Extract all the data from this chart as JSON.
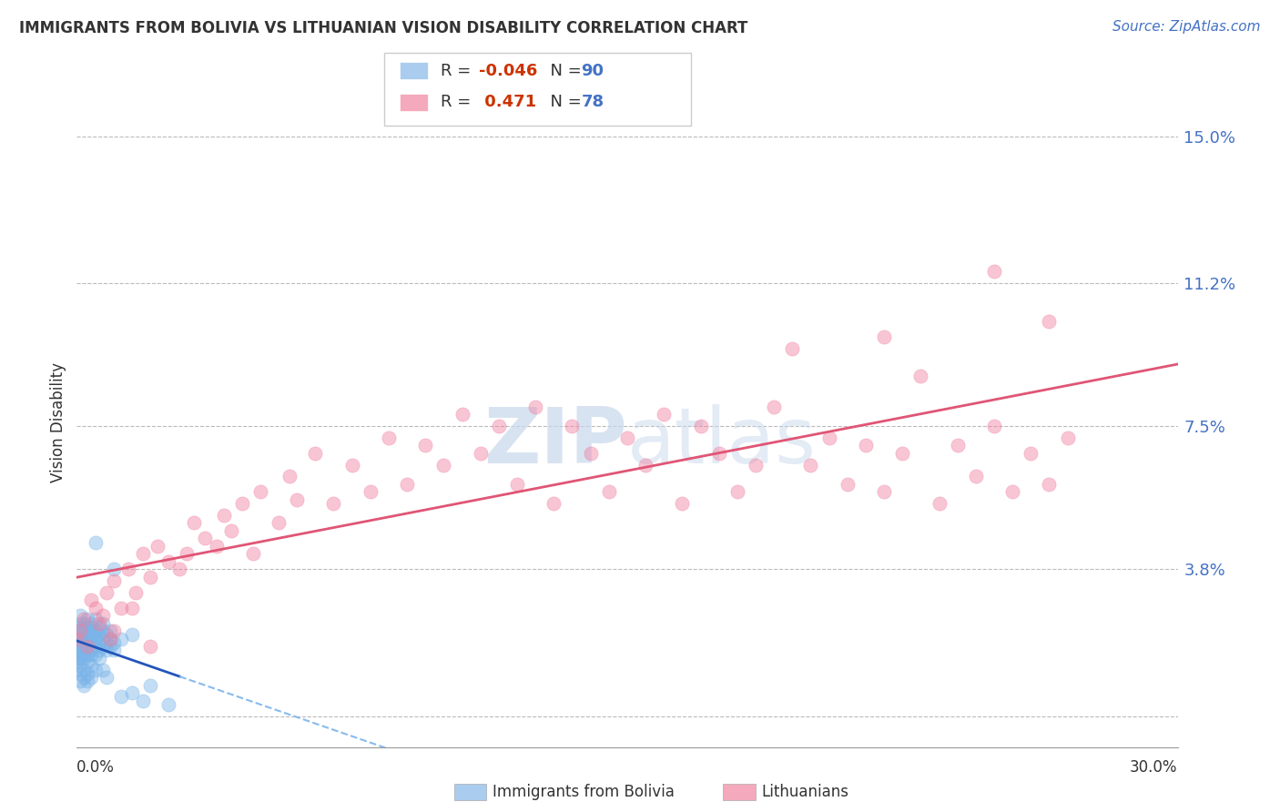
{
  "title": "IMMIGRANTS FROM BOLIVIA VS LITHUANIAN VISION DISABILITY CORRELATION CHART",
  "source": "Source: ZipAtlas.com",
  "ylabel": "Vision Disability",
  "yticks": [
    0.0,
    0.038,
    0.075,
    0.112,
    0.15
  ],
  "ytick_labels": [
    "",
    "3.8%",
    "7.5%",
    "11.2%",
    "15.0%"
  ],
  "xmin": 0.0,
  "xmax": 0.3,
  "ymin": -0.008,
  "ymax": 0.16,
  "bolivia_color": "#7ab4e8",
  "lithuanian_color": "#f080a0",
  "bolivia_line_color": "#2255bb",
  "bolivia_dash_color": "#88bbee",
  "lithuanian_line_color": "#e05575",
  "legend_box_color1": "#aaccee",
  "legend_box_color2": "#f4aabc",
  "watermark_color": "#c8d8ec",
  "bolivia_points": [
    [
      0.0,
      0.018
    ],
    [
      0.0,
      0.02
    ],
    [
      0.0,
      0.022
    ],
    [
      0.0,
      0.015
    ],
    [
      0.0,
      0.012
    ],
    [
      0.0,
      0.016
    ],
    [
      0.0,
      0.019
    ],
    [
      0.0,
      0.021
    ],
    [
      0.0,
      0.017
    ],
    [
      0.0,
      0.014
    ],
    [
      0.001,
      0.021
    ],
    [
      0.001,
      0.019
    ],
    [
      0.001,
      0.023
    ],
    [
      0.001,
      0.016
    ],
    [
      0.001,
      0.018
    ],
    [
      0.001,
      0.02
    ],
    [
      0.001,
      0.022
    ],
    [
      0.001,
      0.015
    ],
    [
      0.001,
      0.017
    ],
    [
      0.001,
      0.013
    ],
    [
      0.001,
      0.024
    ],
    [
      0.001,
      0.026
    ],
    [
      0.001,
      0.011
    ],
    [
      0.001,
      0.009
    ],
    [
      0.002,
      0.022
    ],
    [
      0.002,
      0.02
    ],
    [
      0.002,
      0.018
    ],
    [
      0.002,
      0.024
    ],
    [
      0.002,
      0.016
    ],
    [
      0.002,
      0.019
    ],
    [
      0.002,
      0.021
    ],
    [
      0.002,
      0.017
    ],
    [
      0.002,
      0.023
    ],
    [
      0.002,
      0.015
    ],
    [
      0.002,
      0.012
    ],
    [
      0.002,
      0.01
    ],
    [
      0.002,
      0.008
    ],
    [
      0.003,
      0.021
    ],
    [
      0.003,
      0.019
    ],
    [
      0.003,
      0.023
    ],
    [
      0.003,
      0.017
    ],
    [
      0.003,
      0.02
    ],
    [
      0.003,
      0.022
    ],
    [
      0.003,
      0.016
    ],
    [
      0.003,
      0.018
    ],
    [
      0.003,
      0.014
    ],
    [
      0.003,
      0.011
    ],
    [
      0.003,
      0.025
    ],
    [
      0.003,
      0.009
    ],
    [
      0.004,
      0.02
    ],
    [
      0.004,
      0.022
    ],
    [
      0.004,
      0.018
    ],
    [
      0.004,
      0.024
    ],
    [
      0.004,
      0.016
    ],
    [
      0.004,
      0.021
    ],
    [
      0.004,
      0.023
    ],
    [
      0.004,
      0.017
    ],
    [
      0.004,
      0.013
    ],
    [
      0.004,
      0.01
    ],
    [
      0.005,
      0.022
    ],
    [
      0.005,
      0.02
    ],
    [
      0.005,
      0.018
    ],
    [
      0.005,
      0.016
    ],
    [
      0.005,
      0.021
    ],
    [
      0.005,
      0.025
    ],
    [
      0.005,
      0.045
    ],
    [
      0.005,
      0.012
    ],
    [
      0.006,
      0.019
    ],
    [
      0.006,
      0.021
    ],
    [
      0.006,
      0.017
    ],
    [
      0.006,
      0.023
    ],
    [
      0.006,
      0.015
    ],
    [
      0.007,
      0.02
    ],
    [
      0.007,
      0.022
    ],
    [
      0.007,
      0.018
    ],
    [
      0.007,
      0.024
    ],
    [
      0.007,
      0.012
    ],
    [
      0.008,
      0.019
    ],
    [
      0.008,
      0.021
    ],
    [
      0.008,
      0.017
    ],
    [
      0.008,
      0.01
    ],
    [
      0.009,
      0.018
    ],
    [
      0.009,
      0.02
    ],
    [
      0.009,
      0.022
    ],
    [
      0.01,
      0.019
    ],
    [
      0.01,
      0.017
    ],
    [
      0.01,
      0.038
    ],
    [
      0.012,
      0.02
    ],
    [
      0.012,
      0.005
    ],
    [
      0.015,
      0.021
    ],
    [
      0.015,
      0.006
    ],
    [
      0.018,
      0.004
    ],
    [
      0.02,
      0.008
    ],
    [
      0.025,
      0.003
    ]
  ],
  "lithuanian_points": [
    [
      0.0,
      0.02
    ],
    [
      0.001,
      0.022
    ],
    [
      0.002,
      0.025
    ],
    [
      0.003,
      0.018
    ],
    [
      0.004,
      0.03
    ],
    [
      0.005,
      0.028
    ],
    [
      0.006,
      0.024
    ],
    [
      0.007,
      0.026
    ],
    [
      0.008,
      0.032
    ],
    [
      0.009,
      0.02
    ],
    [
      0.01,
      0.035
    ],
    [
      0.012,
      0.028
    ],
    [
      0.014,
      0.038
    ],
    [
      0.016,
      0.032
    ],
    [
      0.018,
      0.042
    ],
    [
      0.02,
      0.036
    ],
    [
      0.022,
      0.044
    ],
    [
      0.025,
      0.04
    ],
    [
      0.028,
      0.038
    ],
    [
      0.03,
      0.042
    ],
    [
      0.032,
      0.05
    ],
    [
      0.035,
      0.046
    ],
    [
      0.038,
      0.044
    ],
    [
      0.04,
      0.052
    ],
    [
      0.042,
      0.048
    ],
    [
      0.045,
      0.055
    ],
    [
      0.048,
      0.042
    ],
    [
      0.05,
      0.058
    ],
    [
      0.055,
      0.05
    ],
    [
      0.058,
      0.062
    ],
    [
      0.06,
      0.056
    ],
    [
      0.065,
      0.068
    ],
    [
      0.07,
      0.055
    ],
    [
      0.075,
      0.065
    ],
    [
      0.08,
      0.058
    ],
    [
      0.085,
      0.072
    ],
    [
      0.09,
      0.06
    ],
    [
      0.095,
      0.07
    ],
    [
      0.1,
      0.065
    ],
    [
      0.105,
      0.078
    ],
    [
      0.11,
      0.068
    ],
    [
      0.115,
      0.075
    ],
    [
      0.12,
      0.06
    ],
    [
      0.125,
      0.08
    ],
    [
      0.13,
      0.055
    ],
    [
      0.135,
      0.075
    ],
    [
      0.14,
      0.068
    ],
    [
      0.145,
      0.058
    ],
    [
      0.15,
      0.072
    ],
    [
      0.155,
      0.065
    ],
    [
      0.16,
      0.078
    ],
    [
      0.165,
      0.055
    ],
    [
      0.17,
      0.075
    ],
    [
      0.175,
      0.068
    ],
    [
      0.18,
      0.058
    ],
    [
      0.185,
      0.065
    ],
    [
      0.19,
      0.08
    ],
    [
      0.195,
      0.095
    ],
    [
      0.2,
      0.065
    ],
    [
      0.205,
      0.072
    ],
    [
      0.21,
      0.06
    ],
    [
      0.215,
      0.07
    ],
    [
      0.22,
      0.058
    ],
    [
      0.225,
      0.068
    ],
    [
      0.23,
      0.088
    ],
    [
      0.235,
      0.055
    ],
    [
      0.24,
      0.07
    ],
    [
      0.245,
      0.062
    ],
    [
      0.25,
      0.075
    ],
    [
      0.255,
      0.058
    ],
    [
      0.26,
      0.068
    ],
    [
      0.265,
      0.06
    ],
    [
      0.27,
      0.072
    ],
    [
      0.25,
      0.115
    ],
    [
      0.265,
      0.102
    ],
    [
      0.22,
      0.098
    ],
    [
      0.01,
      0.022
    ],
    [
      0.015,
      0.028
    ],
    [
      0.02,
      0.018
    ]
  ]
}
